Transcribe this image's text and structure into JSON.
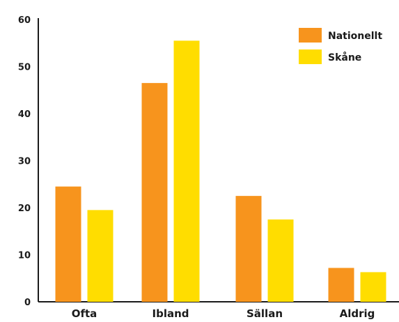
{
  "chart_data": {
    "type": "bar",
    "categories": [
      "Ofta",
      "Ibland",
      "Sällan",
      "Aldrig"
    ],
    "series": [
      {
        "name": "Nationellt",
        "values": [
          24.5,
          46.5,
          22.5,
          7.2
        ],
        "color": "#F7941D"
      },
      {
        "name": "Skåne",
        "values": [
          19.5,
          55.5,
          17.5,
          6.3
        ],
        "color": "#FFDD00"
      }
    ],
    "title": "",
    "xlabel": "",
    "ylabel": "",
    "ylim": [
      0,
      60
    ],
    "yticks": [
      0,
      10,
      20,
      30,
      40,
      50,
      60
    ],
    "grid": false,
    "legend_position": "top-right"
  }
}
